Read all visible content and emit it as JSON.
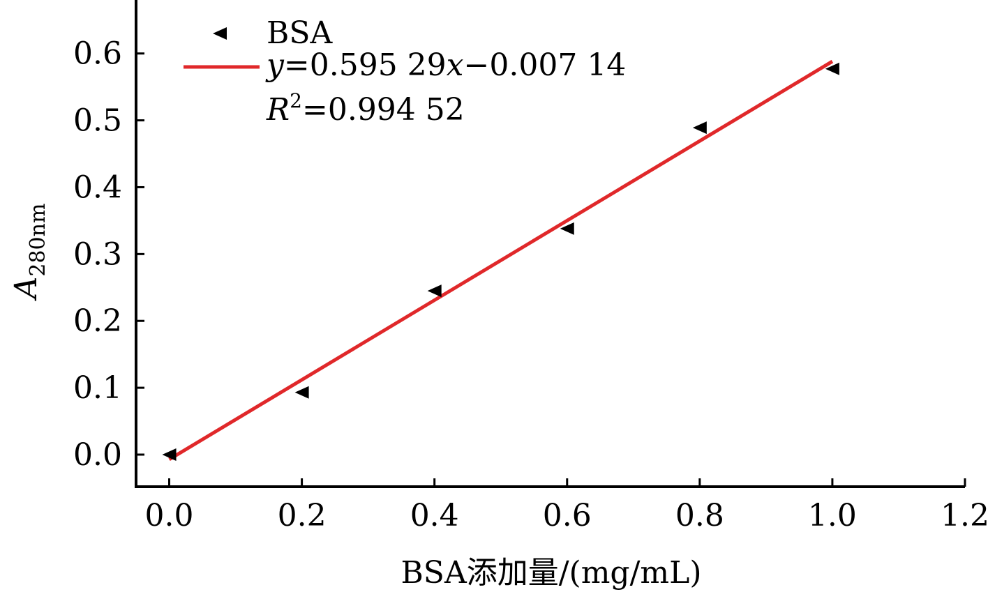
{
  "chart_data": {
    "type": "scatter",
    "xlabel": "BSA添加量/(mg/mL)",
    "ylabel_main": "A",
    "ylabel_sub": "280nm",
    "xlim": [
      -0.05,
      1.2
    ],
    "ylim": [
      -0.048,
      0.68
    ],
    "xticks": [
      0.0,
      0.2,
      0.4,
      0.6,
      0.8,
      1.0,
      1.2
    ],
    "xtick_labels": [
      "0.0",
      "0.2",
      "0.4",
      "0.6",
      "0.8",
      "1.0",
      "1.2"
    ],
    "yticks": [
      0.0,
      0.1,
      0.2,
      0.3,
      0.4,
      0.5,
      0.6
    ],
    "ytick_labels": [
      "0.0",
      "0.1",
      "0.2",
      "0.3",
      "0.4",
      "0.5",
      "0.6"
    ],
    "grid": false,
    "legend_position": "top-left",
    "series": [
      {
        "name": "BSA",
        "marker": "left-triangle",
        "color": "#000000",
        "x": [
          0.0,
          0.2,
          0.4,
          0.6,
          0.8,
          1.0
        ],
        "y": [
          0.0,
          0.093,
          0.245,
          0.338,
          0.489,
          0.577
        ]
      }
    ],
    "fit": {
      "slope": 0.59529,
      "intercept": -0.00714,
      "x_range": [
        0.0,
        1.0
      ],
      "color": "#e0282a",
      "equation": {
        "y_var": "y",
        "eq_before_x": "=0.595 29",
        "x_var": "x",
        "eq_after_x": "−0.007 14"
      },
      "r2": {
        "r_var": "R",
        "sup": "2",
        "value": "=0.994 52"
      }
    }
  }
}
